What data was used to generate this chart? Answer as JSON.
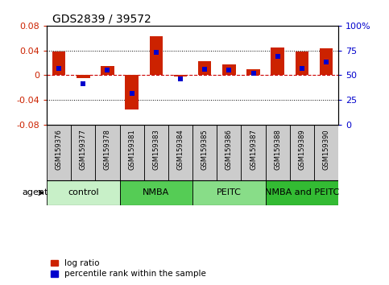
{
  "title": "GDS2839 / 39572",
  "samples": [
    "GSM159376",
    "GSM159377",
    "GSM159378",
    "GSM159381",
    "GSM159383",
    "GSM159384",
    "GSM159385",
    "GSM159386",
    "GSM159387",
    "GSM159388",
    "GSM159389",
    "GSM159390"
  ],
  "log_ratio": [
    0.038,
    -0.005,
    0.015,
    -0.055,
    0.063,
    -0.002,
    0.022,
    0.018,
    0.01,
    0.045,
    0.038,
    0.043
  ],
  "percentile_rank": [
    57,
    41,
    55,
    32,
    73,
    46,
    56,
    55,
    52,
    69,
    57,
    63
  ],
  "groups": [
    {
      "label": "control",
      "start": 0,
      "end": 3,
      "color": "#c8f0c8"
    },
    {
      "label": "NMBA",
      "start": 3,
      "end": 6,
      "color": "#55cc55"
    },
    {
      "label": "PEITC",
      "start": 6,
      "end": 9,
      "color": "#88dd88"
    },
    {
      "label": "NMBA and PEITC",
      "start": 9,
      "end": 12,
      "color": "#33bb33"
    }
  ],
  "ylim": [
    -0.08,
    0.08
  ],
  "y2lim": [
    0,
    100
  ],
  "yticks": [
    -0.08,
    -0.04,
    0.0,
    0.04,
    0.08
  ],
  "y2ticks": [
    0,
    25,
    50,
    75,
    100
  ],
  "bar_color": "#cc2200",
  "percentile_color": "#0000cc",
  "zero_line_color": "#cc0000",
  "bar_width": 0.55,
  "legend_log_ratio": "log ratio",
  "legend_percentile": "percentile rank within the sample",
  "agent_label": "agent",
  "sample_bg_color": "#cccccc",
  "group_label_fontsize": 8,
  "sample_label_fontsize": 6
}
